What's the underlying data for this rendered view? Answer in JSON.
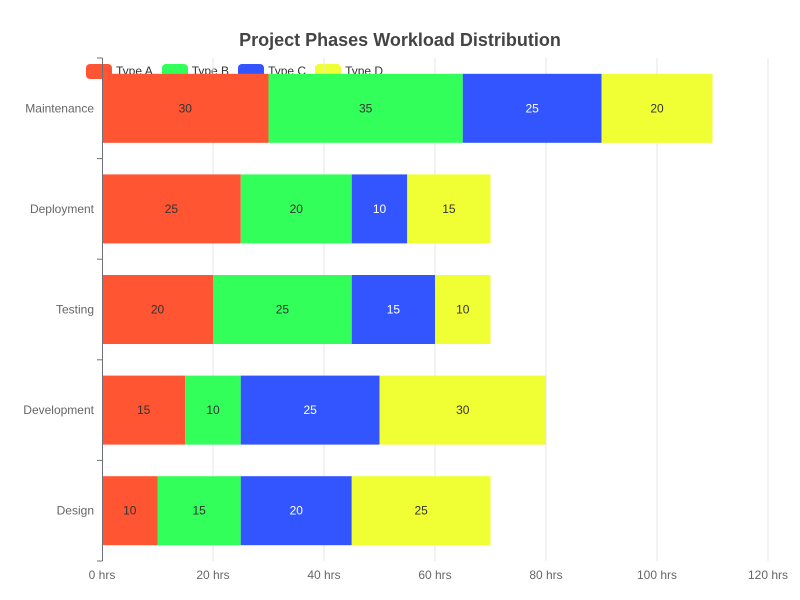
{
  "chart_data": {
    "type": "bar",
    "orientation": "horizontal",
    "stacked": true,
    "title": "Project Phases Workload Distribution",
    "categories": [
      "Design",
      "Development",
      "Testing",
      "Deployment",
      "Maintenance"
    ],
    "series": [
      {
        "name": "Type A",
        "color": "#ff5533",
        "values": [
          10,
          15,
          20,
          25,
          30
        ]
      },
      {
        "name": "Type B",
        "color": "#33ff5a",
        "values": [
          15,
          10,
          25,
          20,
          35
        ]
      },
      {
        "name": "Type C",
        "color": "#3355ff",
        "values": [
          20,
          25,
          15,
          10,
          25
        ]
      },
      {
        "name": "Type D",
        "color": "#f0ff33",
        "values": [
          25,
          30,
          10,
          15,
          20
        ]
      }
    ],
    "xlim": [
      0,
      120
    ],
    "x_ticks": [
      "0 hrs",
      "20 hrs",
      "40 hrs",
      "60 hrs",
      "80 hrs",
      "100 hrs",
      "120 hrs"
    ],
    "x_tick_values": [
      0,
      20,
      40,
      60,
      80,
      100,
      120
    ],
    "grid": true,
    "legend_position": "top-left",
    "data_labels": true
  }
}
